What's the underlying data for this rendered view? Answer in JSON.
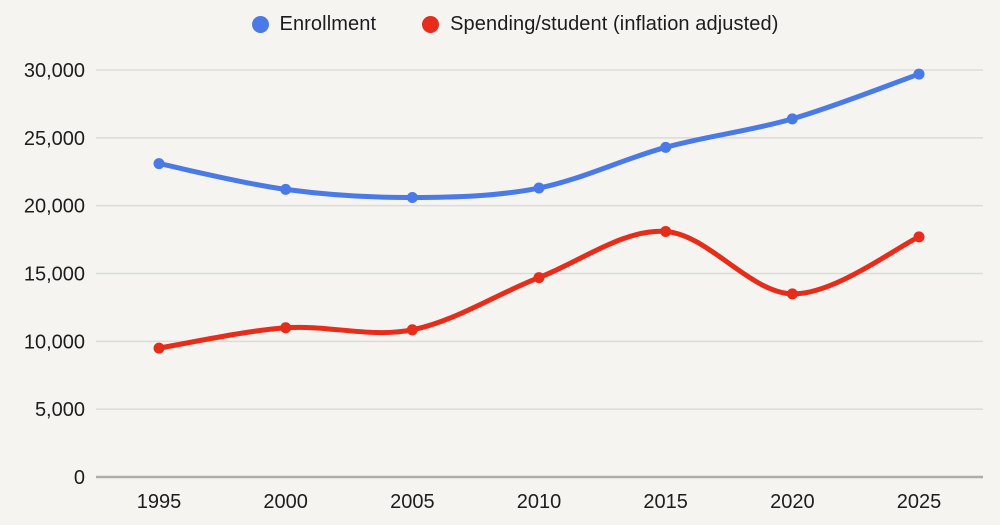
{
  "chart_data": {
    "type": "line",
    "categories": [
      "1995",
      "2000",
      "2005",
      "2010",
      "2015",
      "2020",
      "2025"
    ],
    "series": [
      {
        "name": "Enrollment",
        "color": "#4a79e8",
        "values": [
          23100,
          21200,
          20600,
          21300,
          24300,
          26400,
          29700
        ]
      },
      {
        "name": "Spending/student (inflation adjusted)",
        "color": "#e82c1a",
        "values": [
          9500,
          11000,
          10850,
          14700,
          18100,
          13500,
          17700
        ]
      }
    ],
    "title": "",
    "xlabel": "",
    "ylabel": "",
    "ylim": [
      0,
      30000
    ],
    "y_ticks": [
      0,
      5000,
      10000,
      15000,
      20000,
      25000,
      30000
    ],
    "y_tick_labels": [
      "0",
      "5,000",
      "10,000",
      "15,000",
      "20,000",
      "25,000",
      "30,000"
    ],
    "grid": true,
    "legend_position": "top",
    "smooth": true,
    "marker": "circle"
  },
  "colors": {
    "background": "#f5f4f1",
    "gridline": "#dcdbd7",
    "axis_line": "#aeadaa",
    "text": "#1d1d1d"
  }
}
